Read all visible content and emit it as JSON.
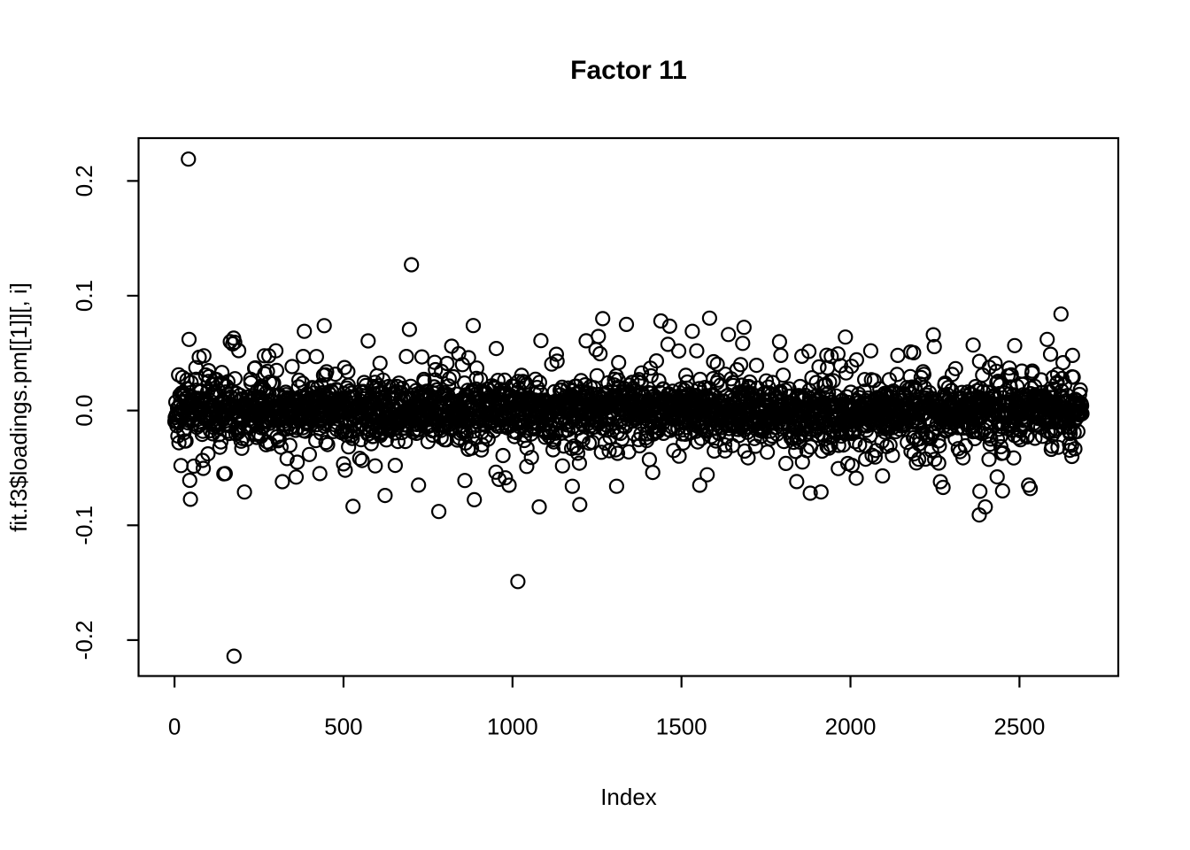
{
  "figure": {
    "background": "#ffffff",
    "foreground": "#000000"
  },
  "chart_data": {
    "type": "scatter",
    "title": "Factor 11",
    "xlabel": "Index",
    "ylabel": "fit.f3$loadings.pm[[1]][, i]",
    "marker": "open-circle",
    "marker_color": "#000000",
    "grid": false,
    "legend": null,
    "x_ticks": [
      0,
      500,
      1000,
      1500,
      2000,
      2500
    ],
    "x_tick_labels": [
      "0",
      "500",
      "1000",
      "1500",
      "2000",
      "2500"
    ],
    "y_ticks": [
      -0.2,
      -0.1,
      0.0,
      0.1,
      0.2
    ],
    "y_tick_labels": [
      "-0.2",
      "-0.1",
      "0.0",
      "0.1",
      "0.2"
    ],
    "xlim": [
      -106.4,
      2792.4
    ],
    "ylim": [
      -0.2313,
      0.2373
    ],
    "n_points": 2685,
    "seed": 11,
    "band_distribution": {
      "description": "zero-mean gaussian mixture for the dense loading band",
      "weights": [
        0.62,
        0.31,
        0.07
      ],
      "sds": [
        0.011,
        0.0205,
        0.033
      ],
      "clamp_abs": 0.092
    },
    "extreme_outliers": [
      [
        41,
        0.219
      ],
      [
        176,
        -0.214
      ],
      [
        701,
        0.127
      ],
      [
        1016,
        -0.149
      ]
    ],
    "highlight_points": [
      [
        43,
        0.062
      ],
      [
        165,
        0.06
      ],
      [
        172,
        0.058
      ],
      [
        300,
        0.052
      ],
      [
        384,
        0.069
      ],
      [
        420,
        0.047
      ],
      [
        770,
        0.042
      ],
      [
        820,
        0.056
      ],
      [
        870,
        0.046
      ],
      [
        884,
        0.074
      ],
      [
        952,
        0.054
      ],
      [
        1130,
        0.049
      ],
      [
        1247,
        0.053
      ],
      [
        1267,
        0.08
      ],
      [
        1337,
        0.075
      ],
      [
        1439,
        0.078
      ],
      [
        1532,
        0.069
      ],
      [
        1545,
        0.052
      ],
      [
        1675,
        0.04
      ],
      [
        1790,
        0.06
      ],
      [
        1794,
        0.048
      ],
      [
        1985,
        0.064
      ],
      [
        2060,
        0.052
      ],
      [
        2140,
        0.048
      ],
      [
        2245,
        0.066
      ],
      [
        2363,
        0.057
      ],
      [
        2582,
        0.062
      ],
      [
        2592,
        0.049
      ],
      [
        2623,
        0.084
      ],
      [
        2657,
        0.048
      ],
      [
        150,
        -0.055
      ],
      [
        207,
        -0.071
      ],
      [
        319,
        -0.062
      ],
      [
        360,
        -0.058
      ],
      [
        430,
        -0.055
      ],
      [
        505,
        -0.052
      ],
      [
        623,
        -0.074
      ],
      [
        722,
        -0.065
      ],
      [
        782,
        -0.088
      ],
      [
        960,
        -0.06
      ],
      [
        1079,
        -0.084
      ],
      [
        1199,
        -0.082
      ],
      [
        1308,
        -0.066
      ],
      [
        1415,
        -0.054
      ],
      [
        1576,
        -0.056
      ],
      [
        1881,
        -0.072
      ],
      [
        2017,
        -0.059
      ],
      [
        2095,
        -0.057
      ],
      [
        2266,
        -0.062
      ],
      [
        2274,
        -0.067
      ],
      [
        2381,
        -0.091
      ],
      [
        2399,
        -0.084
      ],
      [
        2450,
        -0.07
      ],
      [
        2527,
        -0.065
      ],
      [
        2532,
        -0.068
      ]
    ]
  }
}
